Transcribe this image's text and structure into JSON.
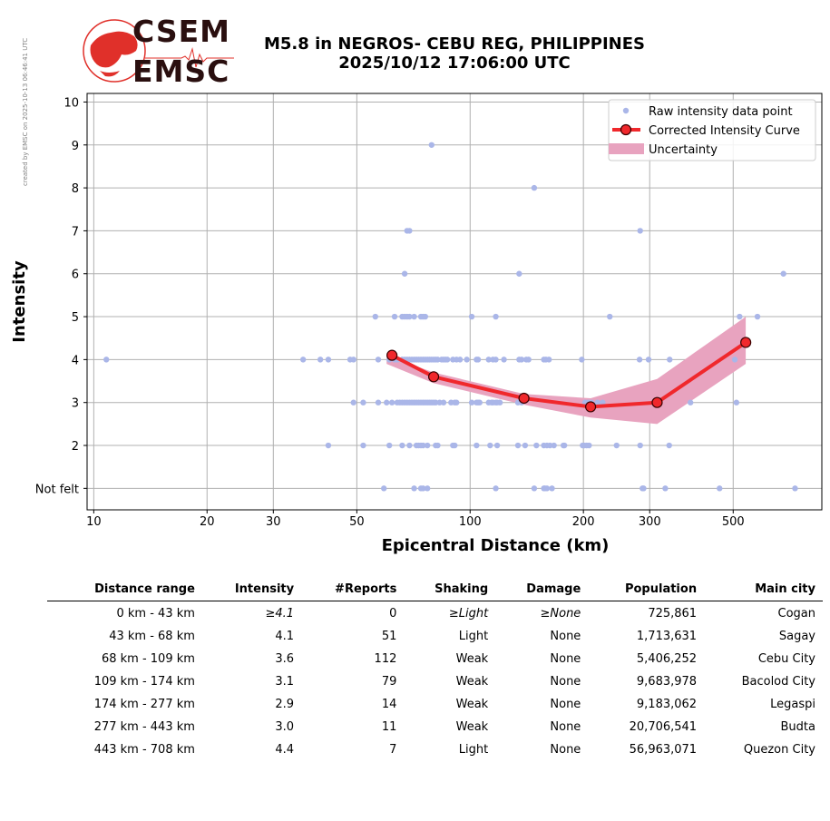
{
  "side_note": "created by EMSC on 2025-10-13 06:46:41 UTC",
  "logo": {
    "line1": "CSEM",
    "line2": "EMSC"
  },
  "header": {
    "title_line1": "M5.8 in NEGROS- CEBU REG, PHILIPPINES",
    "title_line2": "2025/10/12 17:06:00 UTC"
  },
  "colors": {
    "raw": "#aab6e8",
    "curve": "#f0282c",
    "uncertainty": "#e8a3bf",
    "grid": "#b0b0b0"
  },
  "chart_data": {
    "type": "scatter",
    "xlabel": "Epicentral Distance (km)",
    "ylabel": "Intensity",
    "x_scale": "log",
    "xlim": [
      9.6,
      860
    ],
    "ylim": [
      0.5,
      10.2
    ],
    "grid": true,
    "legend_placement": "top-right",
    "x_ticks": [
      10,
      20,
      30,
      50,
      100,
      200,
      300,
      500
    ],
    "x_tick_labels": [
      "10",
      "20",
      "30",
      "50",
      "100",
      "200",
      "300",
      "500"
    ],
    "y_ticks": [
      1,
      2,
      3,
      4,
      5,
      6,
      7,
      8,
      9,
      10
    ],
    "y_tick_labels": [
      "Not felt",
      "2",
      "3",
      "4",
      "5",
      "6",
      "7",
      "8",
      "9",
      "10"
    ],
    "legend": [
      "Raw intensity data point",
      "Corrected Intensity Curve",
      "Uncertainty"
    ],
    "raw_points": [
      [
        10.8,
        4
      ],
      [
        79,
        9
      ],
      [
        148,
        8
      ],
      [
        69,
        7
      ],
      [
        68,
        7
      ],
      [
        283,
        7
      ],
      [
        67,
        6
      ],
      [
        135,
        6
      ],
      [
        680,
        6
      ],
      [
        56,
        5
      ],
      [
        63,
        5
      ],
      [
        66,
        5
      ],
      [
        67,
        5
      ],
      [
        68,
        5
      ],
      [
        69,
        5
      ],
      [
        71,
        5
      ],
      [
        74,
        5
      ],
      [
        75,
        5
      ],
      [
        76,
        5
      ],
      [
        101,
        5
      ],
      [
        117,
        5
      ],
      [
        235,
        5
      ],
      [
        520,
        5
      ],
      [
        580,
        5
      ],
      [
        36,
        4
      ],
      [
        40,
        4
      ],
      [
        42,
        4
      ],
      [
        48,
        4
      ],
      [
        49,
        4
      ],
      [
        57,
        4
      ],
      [
        61,
        4
      ],
      [
        63,
        4
      ],
      [
        64,
        4
      ],
      [
        66,
        4
      ],
      [
        67,
        4
      ],
      [
        68,
        4
      ],
      [
        69,
        4
      ],
      [
        70,
        4
      ],
      [
        71,
        4
      ],
      [
        72,
        4
      ],
      [
        73,
        4
      ],
      [
        74,
        4
      ],
      [
        75,
        4
      ],
      [
        76,
        4
      ],
      [
        77,
        4
      ],
      [
        78,
        4
      ],
      [
        79,
        4
      ],
      [
        80,
        4
      ],
      [
        81,
        4
      ],
      [
        82,
        4
      ],
      [
        84,
        4
      ],
      [
        85,
        4
      ],
      [
        86,
        4
      ],
      [
        87,
        4
      ],
      [
        90,
        4
      ],
      [
        92,
        4
      ],
      [
        94,
        4
      ],
      [
        98,
        4
      ],
      [
        104,
        4
      ],
      [
        105,
        4
      ],
      [
        112,
        4
      ],
      [
        115,
        4
      ],
      [
        117,
        4
      ],
      [
        123,
        4
      ],
      [
        135,
        4
      ],
      [
        137,
        4
      ],
      [
        141,
        4
      ],
      [
        143,
        4
      ],
      [
        157,
        4
      ],
      [
        159,
        4
      ],
      [
        162,
        4
      ],
      [
        198,
        4
      ],
      [
        282,
        4
      ],
      [
        298,
        4
      ],
      [
        339,
        4
      ],
      [
        505,
        4
      ],
      [
        49,
        3
      ],
      [
        52,
        3
      ],
      [
        57,
        3
      ],
      [
        60,
        3
      ],
      [
        62,
        3
      ],
      [
        64,
        3
      ],
      [
        65,
        3
      ],
      [
        66,
        3
      ],
      [
        67,
        3
      ],
      [
        68,
        3
      ],
      [
        69,
        3
      ],
      [
        70,
        3
      ],
      [
        71,
        3
      ],
      [
        72,
        3
      ],
      [
        73,
        3
      ],
      [
        74,
        3
      ],
      [
        75,
        3
      ],
      [
        76,
        3
      ],
      [
        77,
        3
      ],
      [
        78,
        3
      ],
      [
        79,
        3
      ],
      [
        80,
        3
      ],
      [
        81,
        3
      ],
      [
        83,
        3
      ],
      [
        85,
        3
      ],
      [
        89,
        3
      ],
      [
        91,
        3
      ],
      [
        92,
        3
      ],
      [
        101,
        3
      ],
      [
        104,
        3
      ],
      [
        105,
        3
      ],
      [
        106,
        3
      ],
      [
        112,
        3
      ],
      [
        114,
        3
      ],
      [
        115,
        3
      ],
      [
        117,
        3
      ],
      [
        118,
        3
      ],
      [
        120,
        3
      ],
      [
        134,
        3
      ],
      [
        137,
        3
      ],
      [
        202,
        3
      ],
      [
        206,
        3
      ],
      [
        210,
        3
      ],
      [
        218,
        3
      ],
      [
        225,
        3
      ],
      [
        309,
        3
      ],
      [
        385,
        3
      ],
      [
        510,
        3
      ],
      [
        42,
        2
      ],
      [
        52,
        2
      ],
      [
        61,
        2
      ],
      [
        66,
        2
      ],
      [
        69,
        2
      ],
      [
        72,
        2
      ],
      [
        73,
        2
      ],
      [
        74,
        2
      ],
      [
        75,
        2
      ],
      [
        77,
        2
      ],
      [
        81,
        2
      ],
      [
        82,
        2
      ],
      [
        90,
        2
      ],
      [
        91,
        2
      ],
      [
        104,
        2
      ],
      [
        113,
        2
      ],
      [
        118,
        2
      ],
      [
        134,
        2
      ],
      [
        140,
        2
      ],
      [
        150,
        2
      ],
      [
        157,
        2
      ],
      [
        160,
        2
      ],
      [
        163,
        2
      ],
      [
        167,
        2
      ],
      [
        177,
        2
      ],
      [
        178,
        2
      ],
      [
        199,
        2
      ],
      [
        201,
        2
      ],
      [
        204,
        2
      ],
      [
        207,
        2
      ],
      [
        245,
        2
      ],
      [
        283,
        2
      ],
      [
        338,
        2
      ],
      [
        59,
        1
      ],
      [
        71,
        1
      ],
      [
        74,
        1
      ],
      [
        75,
        1
      ],
      [
        77,
        1
      ],
      [
        117,
        1
      ],
      [
        148,
        1
      ],
      [
        157,
        1
      ],
      [
        158,
        1
      ],
      [
        160,
        1
      ],
      [
        165,
        1
      ],
      [
        287,
        1
      ],
      [
        289,
        1
      ],
      [
        330,
        1
      ],
      [
        460,
        1
      ],
      [
        730,
        1
      ]
    ],
    "curve": {
      "name": "Corrected Intensity Curve",
      "x": [
        62,
        80,
        139,
        209,
        314,
        540
      ],
      "y": [
        4.1,
        3.6,
        3.1,
        2.9,
        3.0,
        4.4
      ]
    },
    "uncertainty": {
      "name": "Uncertainty",
      "x": [
        60,
        80,
        139,
        209,
        314,
        540
      ],
      "upper": [
        4.1,
        3.7,
        3.2,
        3.1,
        3.55,
        5.0
      ],
      "lower": [
        3.9,
        3.45,
        2.95,
        2.65,
        2.5,
        3.9
      ]
    }
  },
  "table": {
    "headers": [
      "Distance range",
      "Intensity",
      "#Reports",
      "Shaking",
      "Damage",
      "Population",
      "Main city"
    ],
    "rows": [
      {
        "range": "0 km -   43 km",
        "intensity": "≥4.1",
        "reports": "0",
        "shaking": "≥Light",
        "damage": "≥None",
        "population": "725,861",
        "city": "Cogan"
      },
      {
        "range": "43 km -   68 km",
        "intensity": "4.1",
        "reports": "51",
        "shaking": "Light",
        "damage": "None",
        "population": "1,713,631",
        "city": "Sagay"
      },
      {
        "range": "68 km -  109 km",
        "intensity": "3.6",
        "reports": "112",
        "shaking": "Weak",
        "damage": "None",
        "population": "5,406,252",
        "city": "Cebu City"
      },
      {
        "range": "109 km -  174 km",
        "intensity": "3.1",
        "reports": "79",
        "shaking": "Weak",
        "damage": "None",
        "population": "9,683,978",
        "city": "Bacolod City"
      },
      {
        "range": "174 km -  277 km",
        "intensity": "2.9",
        "reports": "14",
        "shaking": "Weak",
        "damage": "None",
        "population": "9,183,062",
        "city": "Legaspi"
      },
      {
        "range": "277 km -  443 km",
        "intensity": "3.0",
        "reports": "11",
        "shaking": "Weak",
        "damage": "None",
        "population": "20,706,541",
        "city": "Budta"
      },
      {
        "range": "443 km -  708 km",
        "intensity": "4.4",
        "reports": "7",
        "shaking": "Light",
        "damage": "None",
        "population": "56,963,071",
        "city": "Quezon City"
      }
    ]
  }
}
